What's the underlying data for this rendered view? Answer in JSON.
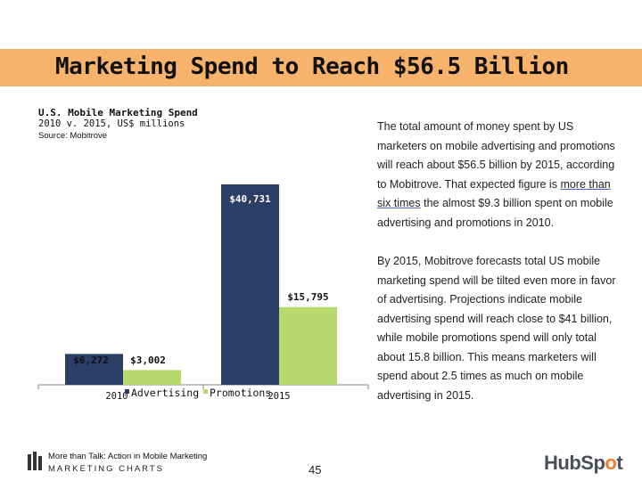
{
  "header": {
    "title": "Marketing Spend to Reach $56.5 Billion"
  },
  "chart_data": {
    "type": "bar",
    "title": "U.S. Mobile Marketing Spend",
    "subtitle": "2010 v. 2015, US$ millions",
    "source": "Source: Mobitrove",
    "categories": [
      "2010",
      "2015"
    ],
    "series": [
      {
        "name": "Advertising",
        "color": "#2b3f66",
        "values": [
          6272,
          40731
        ],
        "labels": [
          "$6,272",
          "$40,731"
        ]
      },
      {
        "name": "Promotions",
        "color": "#b5d96c",
        "values": [
          3002,
          15795
        ],
        "labels": [
          "$3,002",
          "$15,795"
        ]
      }
    ],
    "ylim": [
      0,
      42000
    ],
    "legend_position": "bottom"
  },
  "body": {
    "p1_before": "The total amount of money spent by US marketers on mobile advertising and promotions will reach about $56.5 billion by 2015, according to Mobitrove. That expected figure is ",
    "p1_link": "more than six times",
    "p1_after": " the almost $9.3 billion spent on mobile advertising and promotions in 2010.",
    "p2": "By 2015, Mobitrove forecasts total US mobile marketing spend will be tilted even more in favor of advertising. Projections indicate mobile advertising spend will reach close to $41 billion, while mobile promotions spend will only total about 15.8 billion. This means marketers will spend about 2.5 times as much on mobile advertising in 2015."
  },
  "footer": {
    "title": "More than Talk: Action in Mobile Marketing",
    "brand": "MARKETING CHARTS",
    "page_number": "45",
    "logo_text_a": "HubSp",
    "logo_text_o": "o",
    "logo_text_b": "t"
  }
}
